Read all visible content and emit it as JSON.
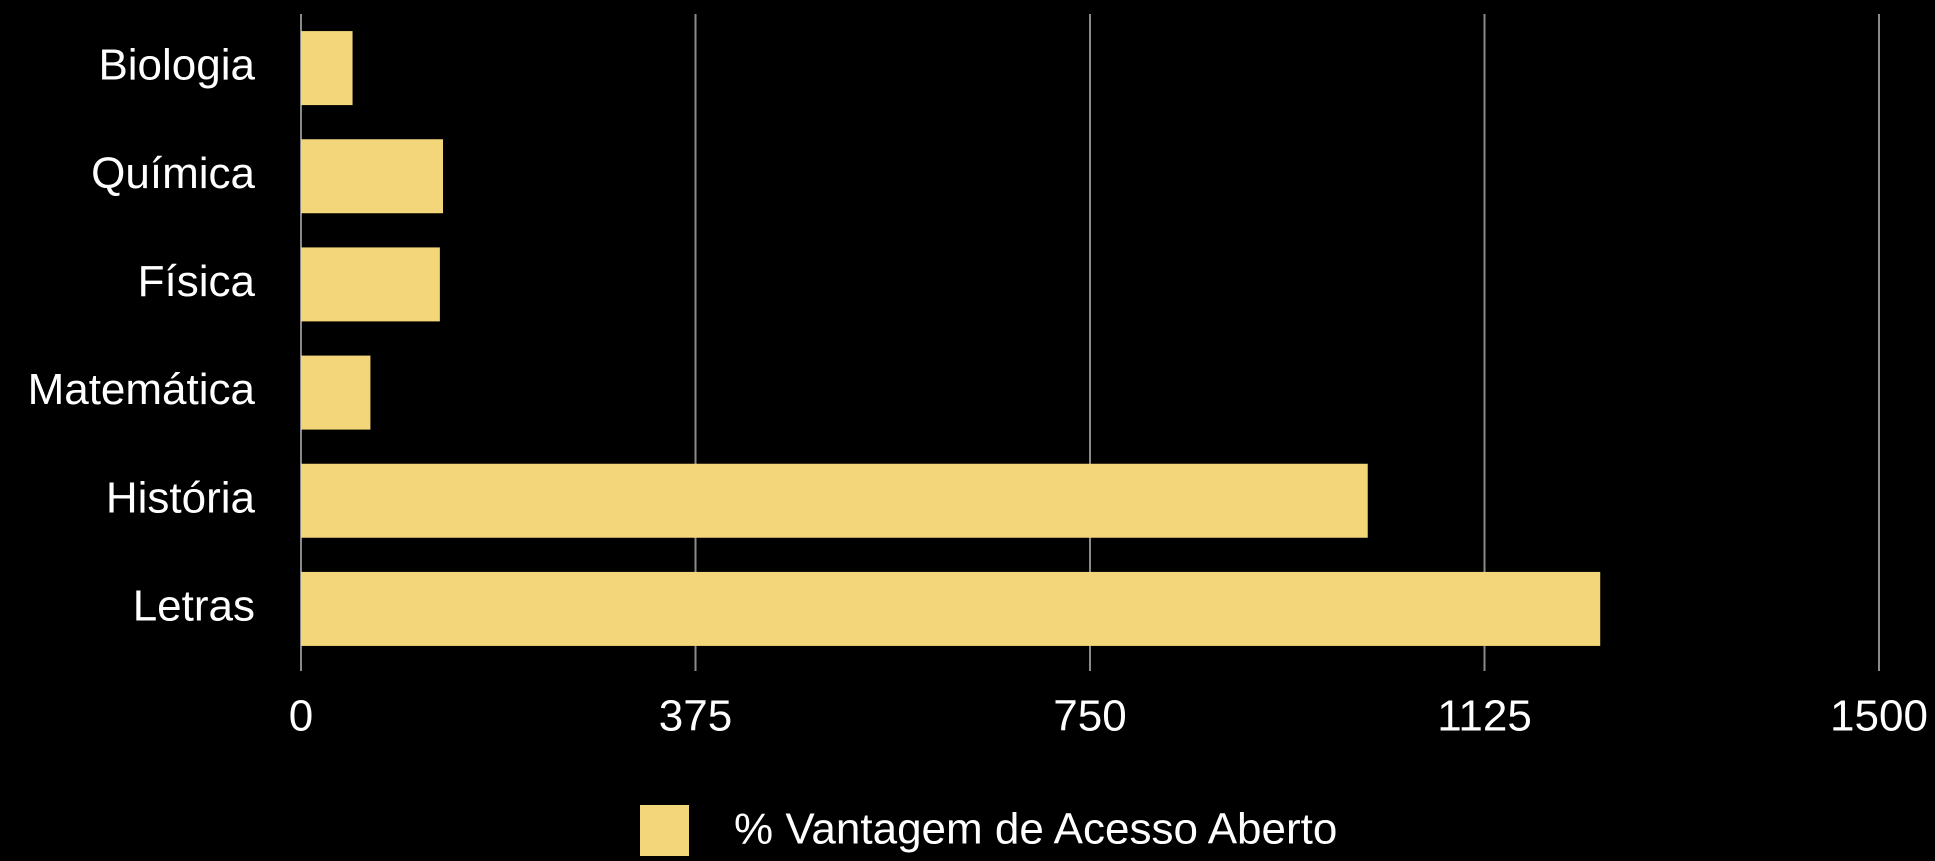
{
  "chart_data": {
    "type": "bar",
    "orientation": "horizontal",
    "categories": [
      "Biologia",
      "Química",
      "Física",
      "Matemática",
      "História",
      "Letras"
    ],
    "series": [
      {
        "name": "% Vantagem de Acesso Aberto",
        "color": "#f4d67a",
        "values": [
          49,
          135,
          132,
          66,
          1014,
          1235
        ]
      }
    ],
    "xlim": [
      0,
      1500
    ],
    "xticks": [
      0,
      375,
      750,
      1125,
      1500
    ],
    "grid": true,
    "legend": "bottom"
  }
}
